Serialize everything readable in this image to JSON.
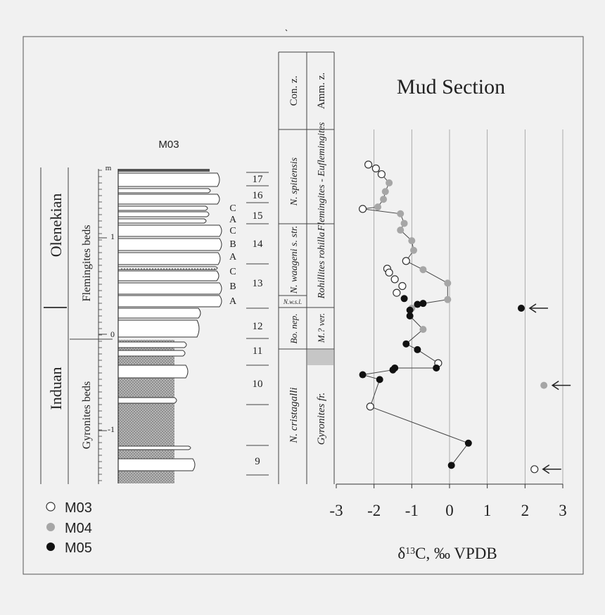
{
  "title": "Mud Section",
  "xlabel_prefix": "δ",
  "xlabel_sup": "13",
  "xlabel_suffix": "C, ‰ VPDB",
  "column_title": "M03",
  "stages": {
    "upper": "Olenekian",
    "lower": "Induan"
  },
  "beds": {
    "upper": "Flemingites beds",
    "lower": "Gyronites beds"
  },
  "meter_label": "m",
  "meter_ticks": [
    "1",
    "0",
    "-1"
  ],
  "bed_letters": [
    "C",
    "A",
    "C",
    "B",
    "A",
    "C",
    "B",
    "A"
  ],
  "bed_numbers": [
    "17",
    "16",
    "15",
    "14",
    "13",
    "12",
    "11",
    "10",
    "9"
  ],
  "conodont_header": "Con. z.",
  "ammonoid_header": "Amm. z.",
  "conodont_zones": [
    "N. spitiensis",
    "N. waageni s. str.",
    "N.w.s.l.",
    "Bo. nep.",
    "N. cristagalli"
  ],
  "ammonoid_zones": [
    "Flemingites - Euflemingites",
    "Rohillites rohilla",
    "M.? ver.",
    "Gyronites fr."
  ],
  "legend": [
    {
      "label": "M03",
      "style": "open"
    },
    {
      "label": "M04",
      "style": "gray"
    },
    {
      "label": "M05",
      "style": "black"
    }
  ],
  "colors": {
    "background": "#f1f1f1",
    "gray_marker": "#a6a6a6",
    "black_marker": "#111111",
    "line": "#444444",
    "lithology_fill": "#9a9a9a"
  },
  "chart_data": {
    "type": "scatter",
    "title": "Mud Section",
    "xlabel": "δ13C, ‰ VPDB",
    "ylabel": "m",
    "xlim": [
      -3,
      3
    ],
    "xticks": [
      -3,
      -2,
      -1,
      0,
      1,
      2,
      3
    ],
    "ylim": [
      -1.5,
      1.8
    ],
    "grid": "vertical",
    "legend_position": "bottom-left",
    "profile": [
      {
        "series": "M03",
        "x": -2.15,
        "y": 1.76
      },
      {
        "series": "M03",
        "x": -1.95,
        "y": 1.72
      },
      {
        "series": "M03",
        "x": -1.8,
        "y": 1.66
      },
      {
        "series": "M04",
        "x": -1.6,
        "y": 1.57
      },
      {
        "series": "M04",
        "x": -1.7,
        "y": 1.48
      },
      {
        "series": "M04",
        "x": -1.75,
        "y": 1.4
      },
      {
        "series": "M04",
        "x": -1.9,
        "y": 1.32
      },
      {
        "series": "M03",
        "x": -2.3,
        "y": 1.3
      },
      {
        "series": "M04",
        "x": -1.3,
        "y": 1.25
      },
      {
        "series": "M04",
        "x": -1.2,
        "y": 1.15
      },
      {
        "series": "M04",
        "x": -1.3,
        "y": 1.08
      },
      {
        "series": "M04",
        "x": -1.0,
        "y": 0.97
      },
      {
        "series": "M04",
        "x": -0.95,
        "y": 0.87
      },
      {
        "series": "M03",
        "x": -1.15,
        "y": 0.76
      },
      {
        "series": "M04",
        "x": -0.7,
        "y": 0.67
      },
      {
        "series": "M04",
        "x": -0.05,
        "y": 0.53
      },
      {
        "series": "M04",
        "x": -0.05,
        "y": 0.36
      },
      {
        "series": "M05",
        "x": -0.7,
        "y": 0.32
      },
      {
        "series": "M05",
        "x": -0.85,
        "y": 0.31
      },
      {
        "series": "M04",
        "x": -1.0,
        "y": 0.27
      },
      {
        "series": "M05",
        "x": -1.05,
        "y": 0.25
      },
      {
        "series": "M05",
        "x": -1.05,
        "y": 0.19
      },
      {
        "series": "M04",
        "x": -0.7,
        "y": 0.05
      },
      {
        "series": "M05",
        "x": -1.15,
        "y": -0.1
      },
      {
        "series": "M05",
        "x": -0.85,
        "y": -0.16
      },
      {
        "series": "M03",
        "x": -0.3,
        "y": -0.3
      },
      {
        "series": "M05",
        "x": -0.35,
        "y": -0.35
      },
      {
        "series": "M05",
        "x": -1.45,
        "y": -0.35
      },
      {
        "series": "M05",
        "x": -1.5,
        "y": -0.37
      },
      {
        "series": "M05",
        "x": -2.3,
        "y": -0.42
      },
      {
        "series": "M05",
        "x": -1.85,
        "y": -0.47
      },
      {
        "series": "M03",
        "x": -2.1,
        "y": -0.75
      },
      {
        "series": "M05",
        "x": 0.5,
        "y": -1.13
      },
      {
        "series": "M05",
        "x": 0.05,
        "y": -1.36
      }
    ],
    "loose_points": [
      {
        "series": "M03",
        "x": -1.65,
        "y": 0.68
      },
      {
        "series": "M03",
        "x": -1.6,
        "y": 0.64
      },
      {
        "series": "M03",
        "x": -1.45,
        "y": 0.57
      },
      {
        "series": "M03",
        "x": -1.25,
        "y": 0.5
      },
      {
        "series": "M03",
        "x": -1.4,
        "y": 0.43
      },
      {
        "series": "M05",
        "x": -1.2,
        "y": 0.37
      }
    ],
    "outliers": [
      {
        "series": "M05",
        "x": 1.9,
        "y": 0.27
      },
      {
        "series": "M04",
        "x": 2.5,
        "y": -0.53
      },
      {
        "series": "M03",
        "x": 2.25,
        "y": -1.4
      }
    ]
  }
}
